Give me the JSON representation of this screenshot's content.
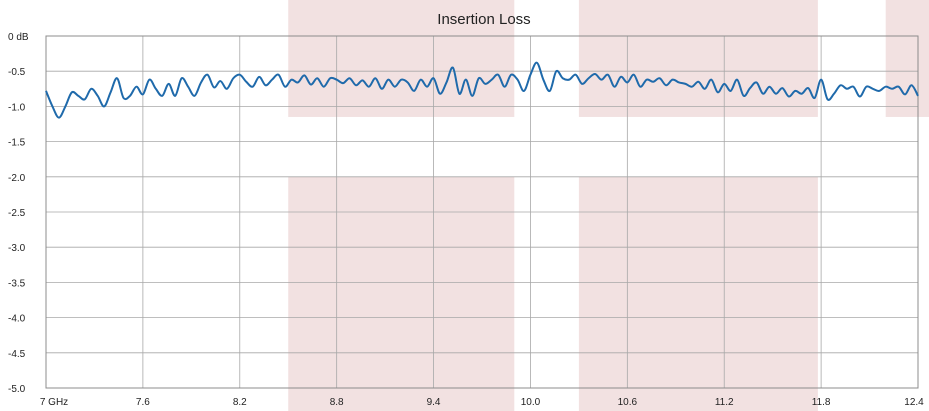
{
  "chart_data": {
    "type": "line",
    "title": "Insertion Loss",
    "xlabel": "",
    "ylabel": "",
    "xlim": [
      7.0,
      12.4
    ],
    "ylim": [
      -5.0,
      0.0
    ],
    "x_ticks": [
      {
        "value": 7.0,
        "label": "7 GHz"
      },
      {
        "value": 7.6,
        "label": "7.6"
      },
      {
        "value": 8.2,
        "label": "8.2"
      },
      {
        "value": 8.8,
        "label": "8.8"
      },
      {
        "value": 9.4,
        "label": "9.4"
      },
      {
        "value": 10.0,
        "label": "10.0"
      },
      {
        "value": 10.6,
        "label": "10.6"
      },
      {
        "value": 11.2,
        "label": "11.2"
      },
      {
        "value": 11.8,
        "label": "11.8"
      },
      {
        "value": 12.4,
        "label": "12.4"
      }
    ],
    "y_ticks": [
      {
        "value": 0.0,
        "label": "0 dB"
      },
      {
        "value": -0.5,
        "label": "-0.5"
      },
      {
        "value": -1.0,
        "label": "-1.0"
      },
      {
        "value": -1.5,
        "label": "-1.5"
      },
      {
        "value": -2.0,
        "label": "-2.0"
      },
      {
        "value": -2.5,
        "label": "-2.5"
      },
      {
        "value": -3.0,
        "label": "-3.0"
      },
      {
        "value": -3.5,
        "label": "-3.5"
      },
      {
        "value": -4.0,
        "label": "-4.0"
      },
      {
        "value": -4.5,
        "label": "-4.5"
      },
      {
        "value": -5.0,
        "label": "-5.0"
      }
    ],
    "grid": true,
    "shaded_regions": [
      {
        "x0": 8.5,
        "x1": 9.9,
        "y_top": 0.0,
        "y_bottom": -1.15
      },
      {
        "x0": 8.5,
        "x1": 9.9,
        "y_top": -2.0,
        "y_bottom": -5.0
      },
      {
        "x0": 10.3,
        "x1": 11.78,
        "y_top": 0.0,
        "y_bottom": -1.15
      },
      {
        "x0": 10.3,
        "x1": 11.78,
        "y_top": -2.0,
        "y_bottom": -5.0
      },
      {
        "x0": 12.2,
        "x1": 12.4,
        "y_top": 0.0,
        "y_bottom": -1.15
      }
    ],
    "series": [
      {
        "color": "#1f6aab",
        "x": [
          7.0,
          7.04,
          7.08,
          7.12,
          7.16,
          7.2,
          7.24,
          7.28,
          7.32,
          7.36,
          7.4,
          7.44,
          7.48,
          7.52,
          7.56,
          7.6,
          7.64,
          7.68,
          7.72,
          7.76,
          7.8,
          7.84,
          7.88,
          7.92,
          7.96,
          8.0,
          8.04,
          8.08,
          8.12,
          8.16,
          8.2,
          8.24,
          8.28,
          8.32,
          8.36,
          8.4,
          8.44,
          8.48,
          8.52,
          8.56,
          8.6,
          8.64,
          8.68,
          8.72,
          8.76,
          8.8,
          8.84,
          8.88,
          8.92,
          8.96,
          9.0,
          9.04,
          9.08,
          9.12,
          9.16,
          9.2,
          9.24,
          9.28,
          9.32,
          9.36,
          9.4,
          9.44,
          9.48,
          9.52,
          9.56,
          9.6,
          9.64,
          9.68,
          9.72,
          9.76,
          9.8,
          9.84,
          9.88,
          9.92,
          9.96,
          10.0,
          10.04,
          10.08,
          10.12,
          10.16,
          10.2,
          10.24,
          10.28,
          10.32,
          10.36,
          10.4,
          10.44,
          10.48,
          10.52,
          10.56,
          10.6,
          10.64,
          10.68,
          10.72,
          10.76,
          10.8,
          10.84,
          10.88,
          10.92,
          10.96,
          11.0,
          11.04,
          11.08,
          11.12,
          11.16,
          11.2,
          11.24,
          11.28,
          11.32,
          11.36,
          11.4,
          11.44,
          11.48,
          11.52,
          11.56,
          11.6,
          11.64,
          11.68,
          11.72,
          11.76,
          11.8,
          11.84,
          11.88,
          11.92,
          11.96,
          12.0,
          12.04,
          12.08,
          12.12,
          12.16,
          12.2,
          12.24,
          12.28,
          12.32,
          12.36,
          12.4
        ],
        "y": [
          -0.78,
          -1.0,
          -1.16,
          -1.0,
          -0.8,
          -0.85,
          -0.9,
          -0.75,
          -0.85,
          -1.0,
          -0.8,
          -0.6,
          -0.88,
          -0.85,
          -0.72,
          -0.83,
          -0.62,
          -0.75,
          -0.85,
          -0.68,
          -0.85,
          -0.6,
          -0.72,
          -0.85,
          -0.66,
          -0.55,
          -0.73,
          -0.64,
          -0.75,
          -0.6,
          -0.55,
          -0.65,
          -0.72,
          -0.58,
          -0.7,
          -0.62,
          -0.55,
          -0.72,
          -0.62,
          -0.66,
          -0.56,
          -0.69,
          -0.6,
          -0.72,
          -0.6,
          -0.62,
          -0.67,
          -0.6,
          -0.7,
          -0.63,
          -0.72,
          -0.6,
          -0.75,
          -0.62,
          -0.72,
          -0.62,
          -0.66,
          -0.78,
          -0.62,
          -0.72,
          -0.6,
          -0.82,
          -0.66,
          -0.45,
          -0.82,
          -0.62,
          -0.85,
          -0.6,
          -0.68,
          -0.62,
          -0.55,
          -0.72,
          -0.55,
          -0.62,
          -0.78,
          -0.55,
          -0.38,
          -0.62,
          -0.78,
          -0.5,
          -0.6,
          -0.62,
          -0.55,
          -0.68,
          -0.6,
          -0.54,
          -0.62,
          -0.55,
          -0.72,
          -0.58,
          -0.66,
          -0.55,
          -0.72,
          -0.62,
          -0.65,
          -0.6,
          -0.7,
          -0.62,
          -0.66,
          -0.68,
          -0.72,
          -0.65,
          -0.75,
          -0.62,
          -0.8,
          -0.68,
          -0.78,
          -0.62,
          -0.85,
          -0.74,
          -0.66,
          -0.82,
          -0.72,
          -0.82,
          -0.74,
          -0.86,
          -0.78,
          -0.82,
          -0.74,
          -0.88,
          -0.62,
          -0.9,
          -0.82,
          -0.7,
          -0.75,
          -0.72,
          -0.86,
          -0.72,
          -0.75,
          -0.78,
          -0.72,
          -0.75,
          -0.72,
          -0.83,
          -0.7,
          -0.85
        ]
      }
    ]
  }
}
